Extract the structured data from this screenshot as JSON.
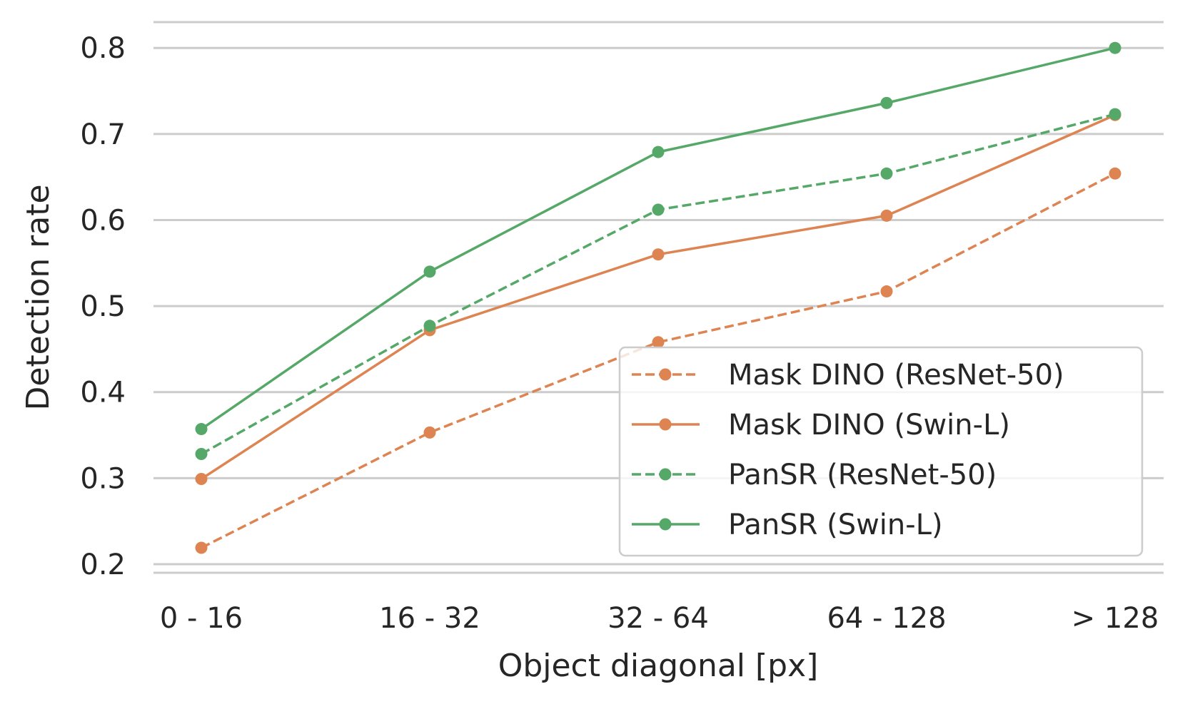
{
  "chart_data": {
    "type": "line",
    "title": "",
    "xlabel": "Object diagonal [px]",
    "ylabel": "Detection rate",
    "categories": [
      "0 - 16",
      "16 - 32",
      "32 - 64",
      "64 - 128",
      "> 128"
    ],
    "yticks": [
      "0.2",
      "0.3",
      "0.4",
      "0.5",
      "0.6",
      "0.7",
      "0.8"
    ],
    "ylim": [
      0.19,
      0.83
    ],
    "grid": "horizontal",
    "legend_position": "lower-right",
    "series": [
      {
        "name": "Mask DINO (ResNet-50)",
        "color": "#dd8452",
        "dashed": true,
        "values": [
          0.219,
          0.353,
          0.458,
          0.517,
          0.654
        ]
      },
      {
        "name": "Mask DINO (Swin-L)",
        "color": "#dd8452",
        "dashed": false,
        "values": [
          0.299,
          0.472,
          0.56,
          0.605,
          0.722
        ]
      },
      {
        "name": "PanSR (ResNet-50)",
        "color": "#55a868",
        "dashed": true,
        "values": [
          0.328,
          0.477,
          0.612,
          0.654,
          0.723
        ]
      },
      {
        "name": "PanSR (Swin-L)",
        "color": "#55a868",
        "dashed": false,
        "values": [
          0.357,
          0.54,
          0.679,
          0.736,
          0.8
        ]
      }
    ]
  }
}
